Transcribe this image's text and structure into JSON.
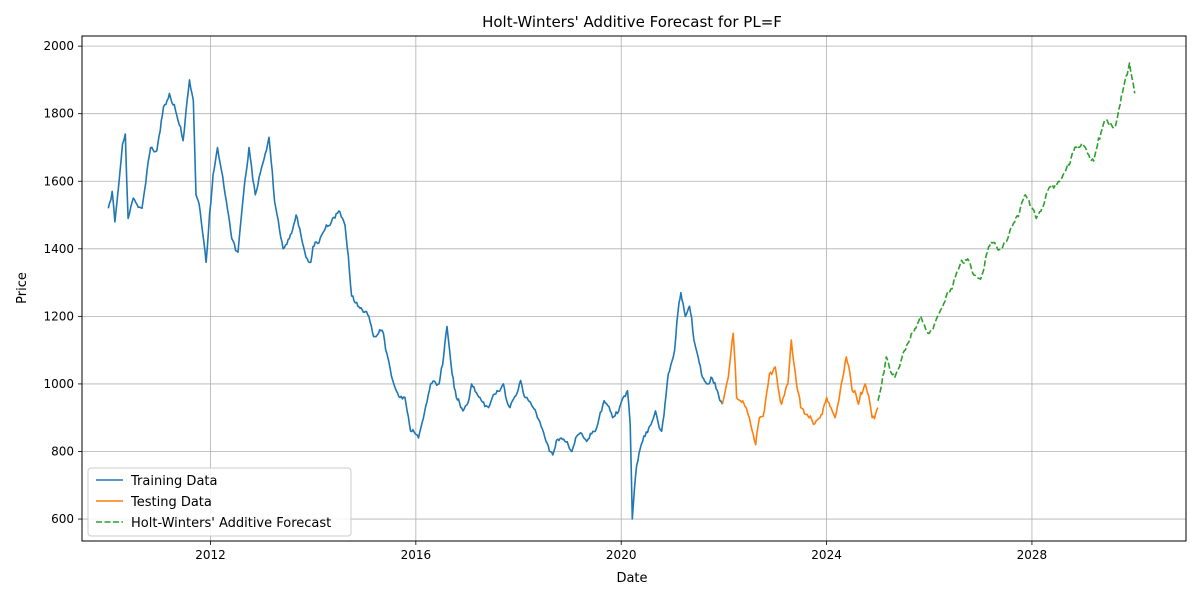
{
  "chart_data": {
    "type": "line",
    "title": "Holt-Winters' Additive Forecast for PL=F",
    "xlabel": "Date",
    "ylabel": "Price",
    "xlim": [
      "2009-07-01",
      "2031-01-01"
    ],
    "ylim": [
      535,
      2030
    ],
    "x_ticks": [
      "2012",
      "2016",
      "2020",
      "2024",
      "2028"
    ],
    "y_ticks": [
      600,
      800,
      1000,
      1200,
      1400,
      1600,
      1800,
      2000
    ],
    "grid": true,
    "legend_position": "lower-left",
    "series": [
      {
        "name": "Training Data",
        "color": "#1f77b4",
        "style": "solid",
        "points": [
          [
            "2010-01-04",
            1520
          ],
          [
            "2010-02-01",
            1570
          ],
          [
            "2010-02-20",
            1480
          ],
          [
            "2010-04-15",
            1710
          ],
          [
            "2010-05-05",
            1740
          ],
          [
            "2010-05-25",
            1490
          ],
          [
            "2010-07-01",
            1550
          ],
          [
            "2010-09-01",
            1520
          ],
          [
            "2010-11-01",
            1700
          ],
          [
            "2010-12-15",
            1690
          ],
          [
            "2011-02-01",
            1820
          ],
          [
            "2011-03-15",
            1860
          ],
          [
            "2011-05-15",
            1780
          ],
          [
            "2011-06-20",
            1720
          ],
          [
            "2011-08-05",
            1900
          ],
          [
            "2011-09-01",
            1840
          ],
          [
            "2011-09-20",
            1560
          ],
          [
            "2011-10-20",
            1510
          ],
          [
            "2011-11-15",
            1420
          ],
          [
            "2011-12-01",
            1360
          ],
          [
            "2012-01-20",
            1620
          ],
          [
            "2012-02-20",
            1700
          ],
          [
            "2012-04-15",
            1560
          ],
          [
            "2012-06-01",
            1430
          ],
          [
            "2012-07-15",
            1390
          ],
          [
            "2012-09-01",
            1600
          ],
          [
            "2012-10-01",
            1700
          ],
          [
            "2012-11-15",
            1560
          ],
          [
            "2013-02-20",
            1730
          ],
          [
            "2013-04-01",
            1540
          ],
          [
            "2013-06-01",
            1400
          ],
          [
            "2013-07-15",
            1430
          ],
          [
            "2013-09-01",
            1500
          ],
          [
            "2013-10-15",
            1420
          ],
          [
            "2013-12-15",
            1360
          ],
          [
            "2014-01-15",
            1420
          ],
          [
            "2014-03-01",
            1440
          ],
          [
            "2014-05-01",
            1470
          ],
          [
            "2014-07-10",
            1510
          ],
          [
            "2014-08-15",
            1470
          ],
          [
            "2014-10-01",
            1260
          ],
          [
            "2014-11-15",
            1230
          ],
          [
            "2014-12-15",
            1220
          ],
          [
            "2015-02-01",
            1200
          ],
          [
            "2015-03-15",
            1140
          ],
          [
            "2015-05-15",
            1150
          ],
          [
            "2015-06-15",
            1080
          ],
          [
            "2015-08-15",
            980
          ],
          [
            "2015-10-15",
            960
          ],
          [
            "2015-11-25",
            860
          ],
          [
            "2016-01-20",
            840
          ],
          [
            "2016-04-15",
            1000
          ],
          [
            "2016-06-15",
            1000
          ],
          [
            "2016-08-10",
            1170
          ],
          [
            "2016-09-15",
            1030
          ],
          [
            "2016-10-15",
            960
          ],
          [
            "2016-12-01",
            920
          ],
          [
            "2017-02-01",
            1000
          ],
          [
            "2017-04-01",
            960
          ],
          [
            "2017-06-01",
            930
          ],
          [
            "2017-08-01",
            980
          ],
          [
            "2017-09-15",
            1000
          ],
          [
            "2017-11-01",
            930
          ],
          [
            "2018-01-15",
            1010
          ],
          [
            "2018-03-01",
            960
          ],
          [
            "2018-05-15",
            900
          ],
          [
            "2018-07-15",
            830
          ],
          [
            "2018-09-01",
            790
          ],
          [
            "2018-11-01",
            840
          ],
          [
            "2019-01-15",
            800
          ],
          [
            "2019-03-01",
            850
          ],
          [
            "2019-05-01",
            830
          ],
          [
            "2019-07-01",
            860
          ],
          [
            "2019-09-01",
            950
          ],
          [
            "2019-11-01",
            900
          ],
          [
            "2020-01-15",
            960
          ],
          [
            "2020-02-15",
            980
          ],
          [
            "2020-03-05",
            880
          ],
          [
            "2020-03-20",
            600
          ],
          [
            "2020-04-20",
            760
          ],
          [
            "2020-06-01",
            830
          ],
          [
            "2020-07-15",
            870
          ],
          [
            "2020-09-01",
            920
          ],
          [
            "2020-10-15",
            860
          ],
          [
            "2020-12-01",
            1030
          ],
          [
            "2021-01-15",
            1100
          ],
          [
            "2021-02-15",
            1240
          ],
          [
            "2021-03-01",
            1270
          ],
          [
            "2021-04-01",
            1200
          ],
          [
            "2021-05-01",
            1230
          ],
          [
            "2021-06-01",
            1130
          ],
          [
            "2021-07-01",
            1080
          ],
          [
            "2021-08-01",
            1020
          ],
          [
            "2021-09-01",
            1000
          ],
          [
            "2021-10-01",
            1020
          ],
          [
            "2021-11-15",
            980
          ],
          [
            "2021-12-20",
            940
          ]
        ]
      },
      {
        "name": "Testing Data",
        "color": "#ff7f0e",
        "style": "solid",
        "points": [
          [
            "2021-12-20",
            940
          ],
          [
            "2022-02-01",
            1020
          ],
          [
            "2022-03-08",
            1150
          ],
          [
            "2022-04-01",
            960
          ],
          [
            "2022-05-15",
            950
          ],
          [
            "2022-07-01",
            900
          ],
          [
            "2022-08-15",
            820
          ],
          [
            "2022-09-10",
            900
          ],
          [
            "2022-10-15",
            920
          ],
          [
            "2022-11-20",
            1030
          ],
          [
            "2023-01-01",
            1050
          ],
          [
            "2023-02-15",
            940
          ],
          [
            "2023-04-01",
            1000
          ],
          [
            "2023-04-25",
            1130
          ],
          [
            "2023-06-01",
            1000
          ],
          [
            "2023-07-01",
            930
          ],
          [
            "2023-08-15",
            910
          ],
          [
            "2023-10-01",
            880
          ],
          [
            "2023-11-15",
            900
          ],
          [
            "2024-01-01",
            960
          ],
          [
            "2024-03-01",
            900
          ],
          [
            "2024-04-15",
            1000
          ],
          [
            "2024-05-20",
            1080
          ],
          [
            "2024-07-01",
            980
          ],
          [
            "2024-08-15",
            940
          ],
          [
            "2024-10-01",
            1000
          ],
          [
            "2024-11-20",
            900
          ],
          [
            "2024-12-31",
            930
          ]
        ]
      },
      {
        "name": "Holt-Winters' Additive Forecast",
        "color": "#2ca02c",
        "style": "dashed",
        "points": [
          [
            "2025-01-01",
            950
          ],
          [
            "2025-03-01",
            1080
          ],
          [
            "2025-05-01",
            1020
          ],
          [
            "2025-08-01",
            1120
          ],
          [
            "2025-11-01",
            1200
          ],
          [
            "2026-01-01",
            1150
          ],
          [
            "2026-03-01",
            1200
          ],
          [
            "2026-05-01",
            1260
          ],
          [
            "2026-07-15",
            1330
          ],
          [
            "2026-10-01",
            1370
          ],
          [
            "2027-01-01",
            1310
          ],
          [
            "2027-03-15",
            1420
          ],
          [
            "2027-06-01",
            1400
          ],
          [
            "2027-09-01",
            1480
          ],
          [
            "2027-11-15",
            1560
          ],
          [
            "2028-02-01",
            1490
          ],
          [
            "2028-05-01",
            1580
          ],
          [
            "2028-08-01",
            1610
          ],
          [
            "2028-11-01",
            1700
          ],
          [
            "2029-01-15",
            1700
          ],
          [
            "2029-03-15",
            1660
          ],
          [
            "2029-06-01",
            1780
          ],
          [
            "2029-08-15",
            1760
          ],
          [
            "2029-10-15",
            1880
          ],
          [
            "2029-11-25",
            1950
          ],
          [
            "2030-01-01",
            1860
          ]
        ]
      }
    ]
  }
}
